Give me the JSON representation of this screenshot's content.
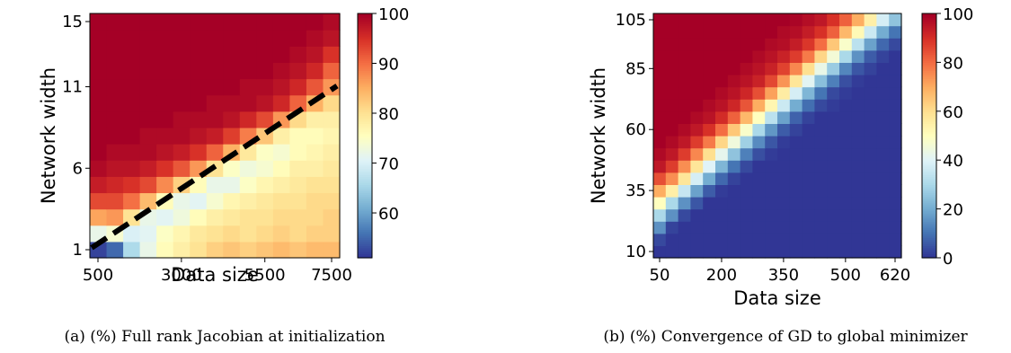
{
  "figures": [
    {
      "caption": "(a) (%) Full rank Jacobian at initialization",
      "chart_data": {
        "type": "heatmap",
        "title": "",
        "xlabel": "Data size",
        "ylabel": "Network width",
        "x_ticks": [
          "500",
          "3000",
          "5500",
          "7500"
        ],
        "y_ticks": [
          "1",
          "6",
          "11",
          "15"
        ],
        "x_range": [
          500,
          7500
        ],
        "y_range": [
          1,
          15
        ],
        "colorbar": {
          "min": 51,
          "max": 100,
          "ticks": [
            "60",
            "70",
            "80",
            "90",
            "100"
          ],
          "colormap": "RdYlBu_r"
        },
        "dashed_line": {
          "from": [
            500,
            2
          ],
          "to": [
            7500,
            11
          ],
          "color": "#000000"
        },
        "rows_bottom_to_top": [
          [
            52,
            55,
            66,
            72,
            76,
            78,
            80,
            82,
            83,
            82,
            83,
            84,
            83,
            84,
            84
          ],
          [
            72,
            74,
            70,
            71,
            75,
            77,
            79,
            80,
            81,
            80,
            81,
            82,
            81,
            82,
            82
          ],
          [
            86,
            87,
            80,
            72,
            71,
            73,
            76,
            78,
            79,
            80,
            80,
            81,
            81,
            81,
            82
          ],
          [
            93,
            93,
            90,
            84,
            76,
            72,
            71,
            74,
            77,
            78,
            79,
            80,
            80,
            81,
            81
          ],
          [
            97,
            96,
            95,
            93,
            88,
            82,
            76,
            72,
            72,
            75,
            77,
            78,
            79,
            80,
            80
          ],
          [
            99,
            98,
            98,
            97,
            95,
            92,
            87,
            80,
            75,
            73,
            74,
            76,
            78,
            78,
            79
          ],
          [
            100,
            99,
            99,
            99,
            98,
            97,
            95,
            91,
            85,
            79,
            75,
            74,
            76,
            77,
            78
          ],
          [
            100,
            100,
            100,
            99,
            99,
            99,
            98,
            97,
            94,
            89,
            83,
            78,
            76,
            76,
            77
          ],
          [
            100,
            100,
            100,
            100,
            100,
            99,
            99,
            99,
            98,
            96,
            93,
            87,
            81,
            78,
            78
          ],
          [
            100,
            100,
            100,
            100,
            100,
            100,
            100,
            99,
            99,
            99,
            98,
            96,
            91,
            85,
            81
          ],
          [
            100,
            100,
            100,
            100,
            100,
            100,
            100,
            100,
            100,
            99,
            99,
            98,
            96,
            92,
            87
          ],
          [
            100,
            100,
            100,
            100,
            100,
            100,
            100,
            100,
            100,
            100,
            100,
            99,
            98,
            96,
            91
          ],
          [
            100,
            100,
            100,
            100,
            100,
            100,
            100,
            100,
            100,
            100,
            100,
            100,
            99,
            98,
            95
          ],
          [
            100,
            100,
            100,
            100,
            100,
            100,
            100,
            100,
            100,
            100,
            100,
            100,
            100,
            99,
            98
          ],
          [
            100,
            100,
            100,
            100,
            100,
            100,
            100,
            100,
            100,
            100,
            100,
            100,
            100,
            100,
            99
          ]
        ]
      }
    },
    {
      "caption": "(b) (%) Convergence of GD to global minimizer",
      "chart_data": {
        "type": "heatmap",
        "title": "",
        "xlabel": "Data size",
        "ylabel": "Network width",
        "x_ticks": [
          "50",
          "200",
          "350",
          "500",
          "620"
        ],
        "y_ticks": [
          "10",
          "35",
          "60",
          "85",
          "105"
        ],
        "x_range": [
          50,
          620
        ],
        "y_range": [
          10,
          105
        ],
        "colorbar": {
          "min": 0,
          "max": 100,
          "ticks": [
            "0",
            "20",
            "40",
            "60",
            "80",
            "100"
          ],
          "colormap": "RdYlBu_r"
        },
        "rows_bottom_to_top": [
          [
            0,
            0,
            0,
            0,
            0,
            0,
            0,
            0,
            0,
            0,
            0,
            0,
            0,
            0,
            0,
            0,
            0,
            0,
            0,
            0
          ],
          [
            3,
            0,
            0,
            0,
            0,
            0,
            0,
            0,
            0,
            0,
            0,
            0,
            0,
            0,
            0,
            0,
            0,
            0,
            0,
            0
          ],
          [
            15,
            2,
            0,
            0,
            0,
            0,
            0,
            0,
            0,
            0,
            0,
            0,
            0,
            0,
            0,
            0,
            0,
            0,
            0,
            0
          ],
          [
            30,
            15,
            3,
            0,
            0,
            0,
            0,
            0,
            0,
            0,
            0,
            0,
            0,
            0,
            0,
            0,
            0,
            0,
            0,
            0
          ],
          [
            50,
            30,
            15,
            5,
            0,
            0,
            0,
            0,
            0,
            0,
            0,
            0,
            0,
            0,
            0,
            0,
            0,
            0,
            0,
            0
          ],
          [
            70,
            55,
            35,
            18,
            6,
            1,
            0,
            0,
            0,
            0,
            0,
            0,
            0,
            0,
            0,
            0,
            0,
            0,
            0,
            0
          ],
          [
            85,
            75,
            58,
            38,
            20,
            8,
            2,
            0,
            0,
            0,
            0,
            0,
            0,
            0,
            0,
            0,
            0,
            0,
            0,
            0
          ],
          [
            95,
            88,
            75,
            58,
            40,
            22,
            10,
            3,
            0,
            0,
            0,
            0,
            0,
            0,
            0,
            0,
            0,
            0,
            0,
            0
          ],
          [
            98,
            95,
            88,
            76,
            60,
            42,
            25,
            12,
            4,
            1,
            0,
            0,
            0,
            0,
            0,
            0,
            0,
            0,
            0,
            0
          ],
          [
            100,
            98,
            95,
            88,
            78,
            62,
            45,
            28,
            14,
            5,
            1,
            0,
            0,
            0,
            0,
            0,
            0,
            0,
            0,
            0
          ],
          [
            100,
            100,
            98,
            95,
            90,
            80,
            65,
            48,
            30,
            16,
            6,
            2,
            0,
            0,
            0,
            0,
            0,
            0,
            0,
            0
          ],
          [
            100,
            100,
            100,
            98,
            96,
            91,
            82,
            68,
            50,
            33,
            18,
            7,
            2,
            0,
            0,
            0,
            0,
            0,
            0,
            0
          ],
          [
            100,
            100,
            100,
            100,
            98,
            96,
            92,
            84,
            70,
            53,
            36,
            20,
            9,
            3,
            1,
            0,
            0,
            0,
            0,
            0
          ],
          [
            100,
            100,
            100,
            100,
            100,
            98,
            96,
            92,
            85,
            72,
            56,
            38,
            22,
            10,
            3,
            1,
            0,
            0,
            0,
            0
          ],
          [
            100,
            100,
            100,
            100,
            100,
            100,
            98,
            96,
            93,
            86,
            74,
            58,
            41,
            24,
            12,
            4,
            1,
            0,
            0,
            0
          ],
          [
            100,
            100,
            100,
            100,
            100,
            100,
            100,
            98,
            96,
            93,
            87,
            76,
            60,
            43,
            27,
            13,
            5,
            2,
            0,
            0
          ],
          [
            100,
            100,
            100,
            100,
            100,
            100,
            100,
            100,
            98,
            96,
            93,
            88,
            78,
            62,
            46,
            30,
            15,
            6,
            2,
            0
          ],
          [
            100,
            100,
            100,
            100,
            100,
            100,
            100,
            100,
            100,
            98,
            97,
            94,
            89,
            80,
            65,
            48,
            33,
            18,
            8,
            3
          ],
          [
            100,
            100,
            100,
            100,
            100,
            100,
            100,
            100,
            100,
            100,
            98,
            97,
            94,
            90,
            82,
            68,
            52,
            36,
            20,
            10
          ],
          [
            100,
            100,
            100,
            100,
            100,
            100,
            100,
            100,
            100,
            100,
            100,
            99,
            97,
            95,
            90,
            82,
            70,
            55,
            38,
            25
          ]
        ]
      }
    }
  ]
}
